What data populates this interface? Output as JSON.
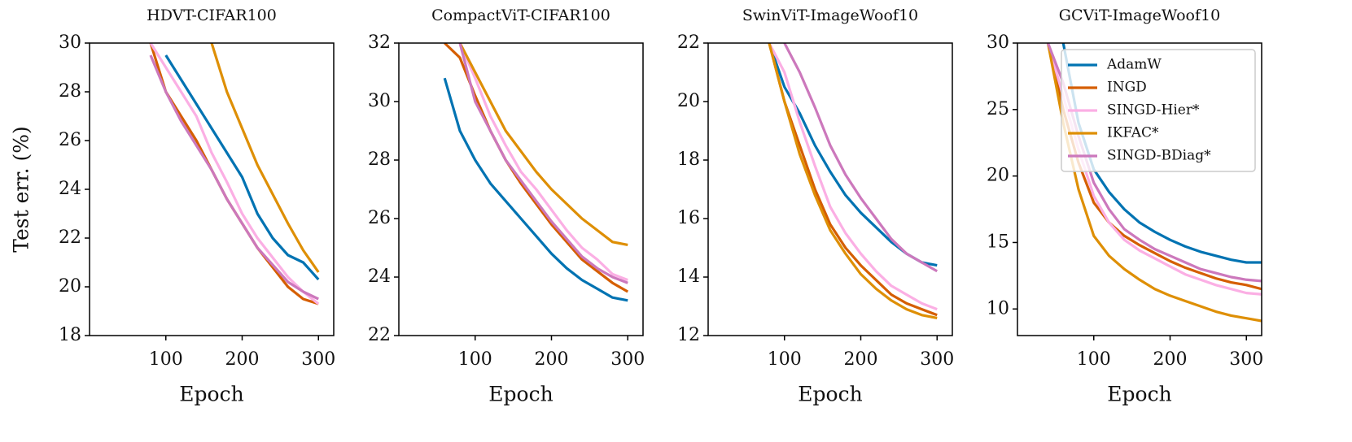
{
  "chart_data": [
    {
      "type": "line",
      "title": "HDVT-CIFAR100",
      "xlabel": "Epoch",
      "ylabel": "Test err. (%)",
      "x": [
        80,
        100,
        120,
        140,
        160,
        180,
        200,
        220,
        240,
        260,
        280,
        300
      ],
      "xlim": [
        0,
        320
      ],
      "xticks": [
        100,
        200,
        300
      ],
      "ylim": [
        18,
        30
      ],
      "yticks": [
        18,
        20,
        22,
        24,
        26,
        28,
        30
      ],
      "series": [
        {
          "name": "AdamW",
          "color": "#0173b2",
          "values": [
            null,
            29.5,
            28.5,
            27.5,
            26.5,
            25.5,
            24.5,
            23,
            22,
            21.3,
            21,
            20.3
          ]
        },
        {
          "name": "INGD",
          "color": "#d55e00",
          "values": [
            30,
            28,
            27,
            26,
            24.8,
            23.6,
            22.6,
            21.6,
            20.8,
            20,
            19.5,
            19.3
          ]
        },
        {
          "name": "SINGD-Hier*",
          "color": "#fbafe4",
          "values": [
            30,
            29,
            28,
            27,
            25.5,
            24.3,
            23,
            22,
            21.2,
            20.4,
            19.8,
            19.3
          ]
        },
        {
          "name": "IKFAC*",
          "color": "#de8f05",
          "values": [
            null,
            null,
            null,
            null,
            30,
            28,
            26.5,
            25,
            23.8,
            22.6,
            21.5,
            20.6
          ]
        },
        {
          "name": "SINGD-BDiag*",
          "color": "#cc78bc",
          "values": [
            29.5,
            28,
            26.8,
            25.8,
            24.8,
            23.6,
            22.6,
            21.6,
            20.9,
            20.2,
            19.8,
            19.5
          ]
        }
      ]
    },
    {
      "type": "line",
      "title": "CompactViT-CIFAR100",
      "xlabel": "Epoch",
      "x": [
        60,
        80,
        100,
        120,
        140,
        160,
        180,
        200,
        220,
        240,
        260,
        280,
        300
      ],
      "xlim": [
        0,
        320
      ],
      "xticks": [
        100,
        200,
        300
      ],
      "ylim": [
        22,
        32
      ],
      "yticks": [
        22,
        24,
        26,
        28,
        30,
        32
      ],
      "series": [
        {
          "name": "AdamW",
          "color": "#0173b2",
          "values": [
            30.8,
            29,
            28,
            27.2,
            26.6,
            26,
            25.4,
            24.8,
            24.3,
            23.9,
            23.6,
            23.3,
            23.2
          ]
        },
        {
          "name": "INGD",
          "color": "#d55e00",
          "values": [
            32,
            31.5,
            30.2,
            29,
            28,
            27.2,
            26.5,
            25.8,
            25.2,
            24.6,
            24.2,
            23.8,
            23.5
          ]
        },
        {
          "name": "SINGD-Hier*",
          "color": "#fbafe4",
          "values": [
            null,
            32,
            30.8,
            29.5,
            28.5,
            27.6,
            27,
            26.3,
            25.6,
            25,
            24.6,
            24.1,
            23.9
          ]
        },
        {
          "name": "IKFAC*",
          "color": "#de8f05",
          "values": [
            null,
            32,
            31,
            30,
            29,
            28.3,
            27.6,
            27,
            26.5,
            26,
            25.6,
            25.2,
            25.1
          ]
        },
        {
          "name": "SINGD-BDiag*",
          "color": "#cc78bc",
          "values": [
            null,
            32,
            30,
            29,
            28,
            27.3,
            26.6,
            25.9,
            25.3,
            24.7,
            24.3,
            24,
            23.8
          ]
        }
      ]
    },
    {
      "type": "line",
      "title": "SwinViT-ImageWoof10",
      "xlabel": "Epoch",
      "x": [
        80,
        100,
        120,
        140,
        160,
        180,
        200,
        220,
        240,
        260,
        280,
        300
      ],
      "xlim": [
        0,
        320
      ],
      "xticks": [
        100,
        200,
        300
      ],
      "ylim": [
        12,
        22
      ],
      "yticks": [
        12,
        14,
        16,
        18,
        20,
        22
      ],
      "series": [
        {
          "name": "AdamW",
          "color": "#0173b2",
          "values": [
            22,
            20.5,
            19.6,
            18.5,
            17.6,
            16.8,
            16.2,
            15.7,
            15.2,
            14.8,
            14.5,
            14.4
          ]
        },
        {
          "name": "INGD",
          "color": "#d55e00",
          "values": [
            22,
            20,
            18.5,
            17,
            15.8,
            15,
            14.4,
            13.9,
            13.4,
            13.1,
            12.9,
            12.7
          ]
        },
        {
          "name": "SINGD-Hier*",
          "color": "#fbafe4",
          "values": [
            22,
            21,
            19.3,
            17.8,
            16.4,
            15.5,
            14.8,
            14.2,
            13.7,
            13.4,
            13.1,
            12.9
          ]
        },
        {
          "name": "IKFAC*",
          "color": "#de8f05",
          "values": [
            22,
            20,
            18.2,
            16.8,
            15.6,
            14.8,
            14.1,
            13.6,
            13.2,
            12.9,
            12.7,
            12.6
          ]
        },
        {
          "name": "SINGD-BDiag*",
          "color": "#cc78bc",
          "values": [
            null,
            22,
            21,
            19.8,
            18.5,
            17.5,
            16.7,
            16,
            15.3,
            14.8,
            14.5,
            14.2
          ]
        }
      ]
    },
    {
      "type": "line",
      "title": "GCViT-ImageWoof10",
      "xlabel": "Epoch",
      "legend": "upper right",
      "x": [
        40,
        60,
        80,
        100,
        120,
        140,
        160,
        180,
        200,
        220,
        240,
        260,
        280,
        300,
        320
      ],
      "xlim": [
        0,
        320
      ],
      "xticks": [
        100,
        200,
        300
      ],
      "ylim": [
        8,
        30
      ],
      "yticks": [
        10,
        15,
        20,
        25,
        30
      ],
      "series": [
        {
          "name": "AdamW",
          "color": "#0173b2",
          "values": [
            null,
            30,
            24,
            20.5,
            18.8,
            17.5,
            16.5,
            15.8,
            15.2,
            14.7,
            14.3,
            14,
            13.7,
            13.5,
            13.5
          ]
        },
        {
          "name": "INGD",
          "color": "#d55e00",
          "values": [
            30,
            25,
            21,
            18,
            16.5,
            15.5,
            14.8,
            14.2,
            13.6,
            13.1,
            12.7,
            12.3,
            12,
            11.8,
            11.5
          ]
        },
        {
          "name": "SINGD-Hier*",
          "color": "#fbafe4",
          "values": [
            30,
            26,
            22,
            18.5,
            16.5,
            15.2,
            14.4,
            13.8,
            13.2,
            12.6,
            12.2,
            11.8,
            11.5,
            11.2,
            11.1
          ]
        },
        {
          "name": "IKFAC*",
          "color": "#de8f05",
          "values": [
            30,
            24,
            19,
            15.5,
            14,
            13,
            12.2,
            11.5,
            11,
            10.6,
            10.2,
            9.8,
            9.5,
            9.3,
            9.1
          ]
        },
        {
          "name": "SINGD-BDiag*",
          "color": "#cc78bc",
          "values": [
            30,
            27,
            23,
            19.5,
            17.5,
            16,
            15.2,
            14.5,
            14,
            13.5,
            13,
            12.7,
            12.4,
            12.2,
            12.1
          ]
        }
      ]
    }
  ]
}
